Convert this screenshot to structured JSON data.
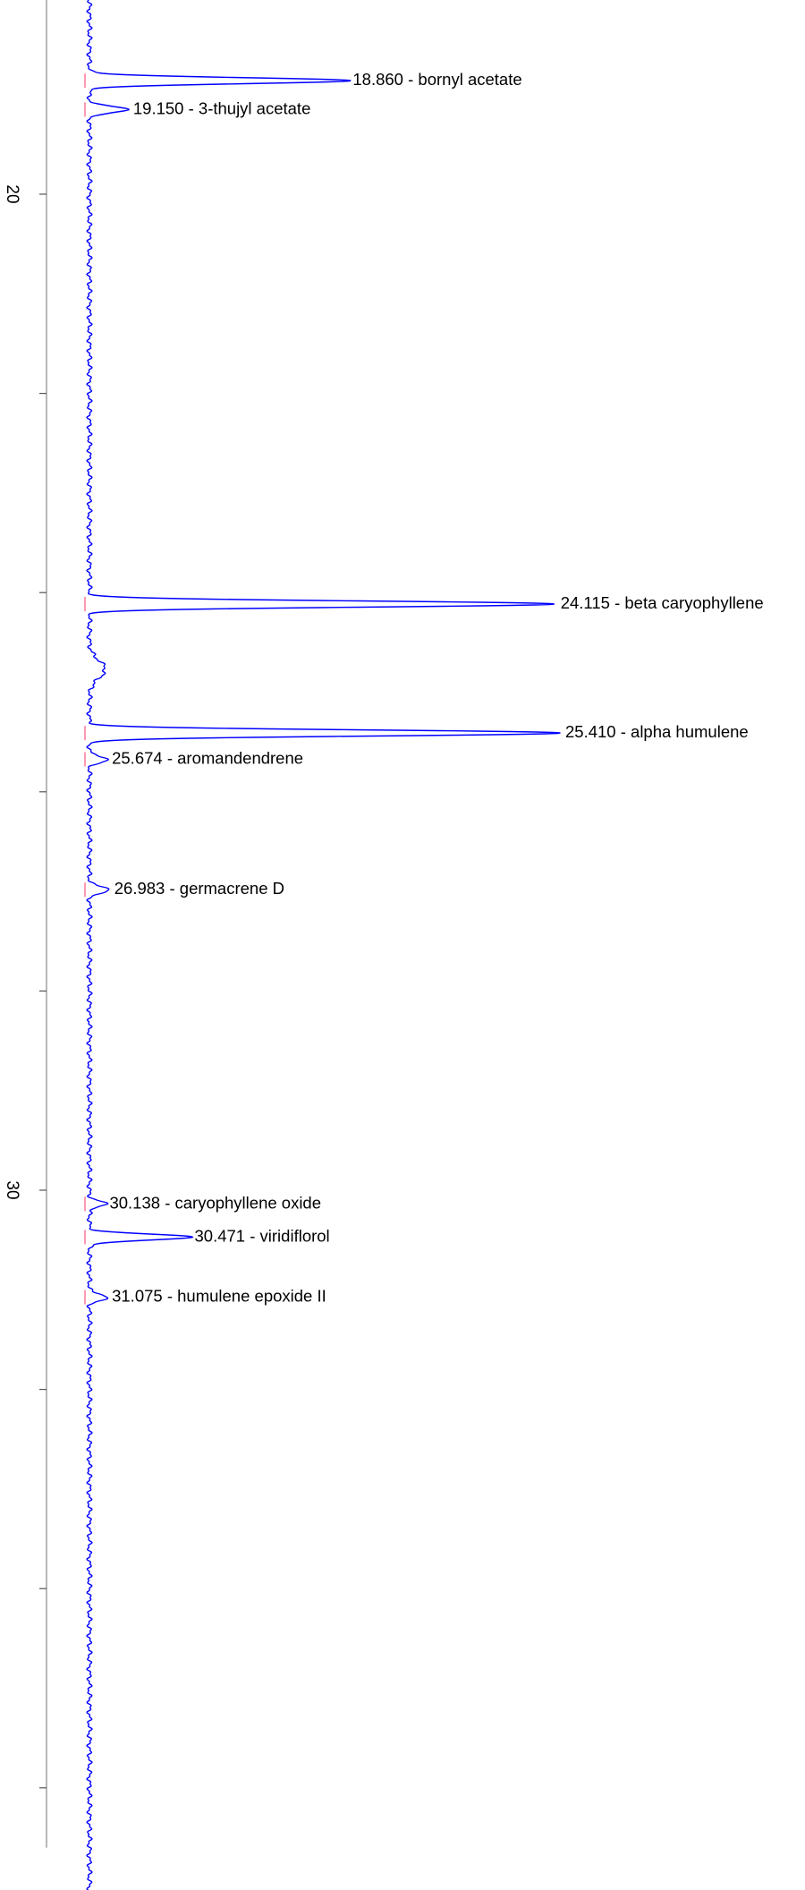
{
  "chart_data": {
    "type": "line",
    "orientation": "vertical-time-axis",
    "title": "",
    "xlabel": "",
    "ylabel": "",
    "time_range": [
      17.5,
      36.6
    ],
    "time_ticks": [
      20,
      22,
      24,
      26,
      28,
      30,
      32,
      34,
      36
    ],
    "time_tick_labels": [
      {
        "value": 20,
        "text": "20"
      },
      {
        "value": 30,
        "text": "30"
      }
    ],
    "intensity_unit_note": "relative intensity, 0 = baseline, 1 = largest peak",
    "grid": false,
    "legend": "none",
    "peaks": [
      {
        "rt": 18.86,
        "text": "18.860 -  bornyl acetate",
        "intensity": 0.55
      },
      {
        "rt": 19.15,
        "text": "19.150 -  3-thujyl acetate",
        "intensity": 0.085
      },
      {
        "rt": 24.115,
        "text": "24.115 -  beta caryophyllene",
        "intensity": 0.99
      },
      {
        "rt": 25.41,
        "text": "25.410 -  alpha humulene",
        "intensity": 1.0
      },
      {
        "rt": 25.674,
        "text": "25.674 -  aromandendrene",
        "intensity": 0.04
      },
      {
        "rt": 26.983,
        "text": "26.983 -  germacrene D",
        "intensity": 0.045
      },
      {
        "rt": 30.138,
        "text": "30.138 -  caryophyllene oxide",
        "intensity": 0.035
      },
      {
        "rt": 30.471,
        "text": "30.471 -  viridiflorol",
        "intensity": 0.215
      },
      {
        "rt": 31.075,
        "text": "31.075 -  humulene epoxide II",
        "intensity": 0.04
      }
    ],
    "unlabeled_bumps": [
      {
        "rt": 24.77,
        "intensity": 0.033
      }
    ],
    "colors": {
      "trace": "#0000ff",
      "baseline_marks": "#ff3366",
      "axis": "#888888",
      "text": "#000000"
    }
  }
}
